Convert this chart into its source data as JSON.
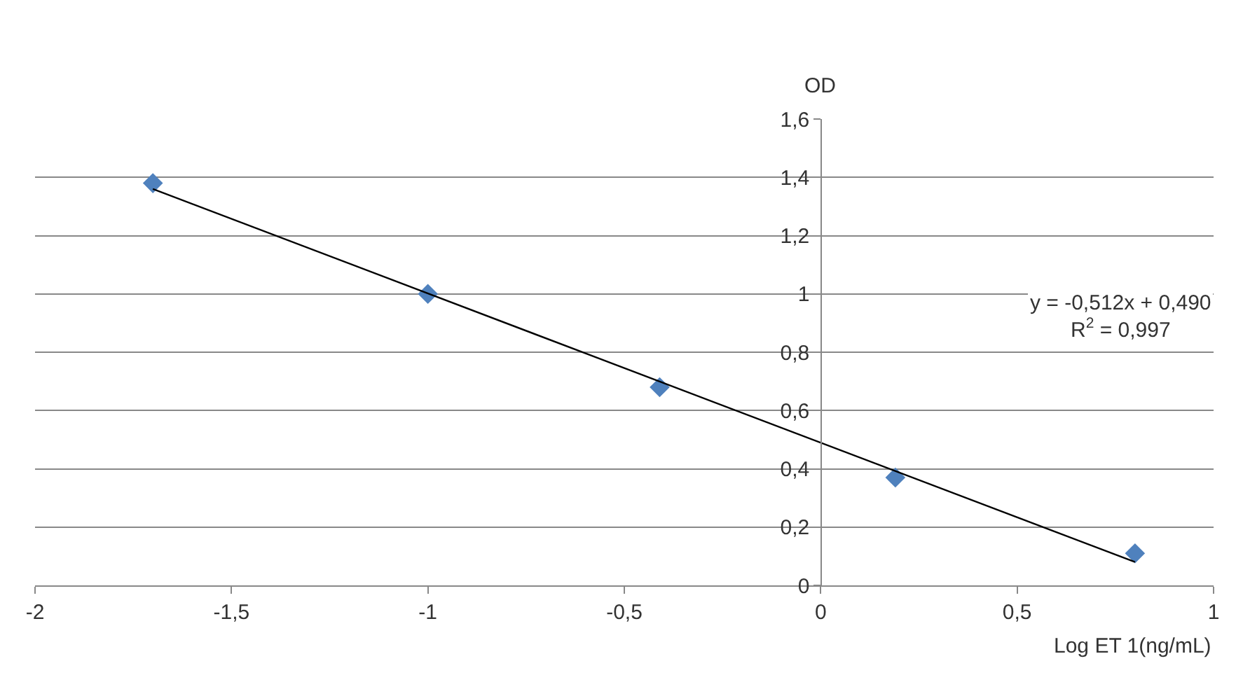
{
  "chart_data": {
    "type": "scatter",
    "xlabel": "Log ET 1(ng/mL)",
    "ylabel": "OD",
    "series": [
      {
        "color": "#4f81bd",
        "marker": "diamond",
        "x": [
          -1.7,
          -1,
          -0.41,
          0.19,
          0.8
        ],
        "values": [
          1.38,
          1.0,
          0.68,
          0.37,
          0.11
        ]
      },
      {
        "type": "line",
        "color": "#000000",
        "line_style": "solid",
        "x": [
          -1.7,
          0.8
        ],
        "values": [
          1.36,
          0.08
        ]
      }
    ],
    "xlim": [
      -2,
      1
    ],
    "ylim": [
      0,
      1.6
    ],
    "xticks": [
      -2,
      {
        "value": -1.5,
        "label": "-1,5"
      },
      -1,
      {
        "value": -0.5,
        "label": "-0,5"
      },
      0,
      {
        "value": 0.5,
        "label": "0,5"
      },
      1
    ],
    "yticks": [
      0,
      {
        "value": 0.2,
        "label": "0,2"
      },
      {
        "value": 0.4,
        "label": "0,4"
      },
      {
        "value": 0.6,
        "label": "0,6"
      },
      {
        "value": 0.8,
        "label": "0,8"
      },
      1,
      {
        "value": 1.2,
        "label": "1,2"
      },
      {
        "value": 1.4,
        "label": "1,4"
      },
      {
        "value": 1.6,
        "label": "1,6"
      }
    ],
    "annotations": [
      "y = -0,512x + 0,490",
      "R$^{2}$ = 0,997"
    ],
    "grid": "y"
  }
}
